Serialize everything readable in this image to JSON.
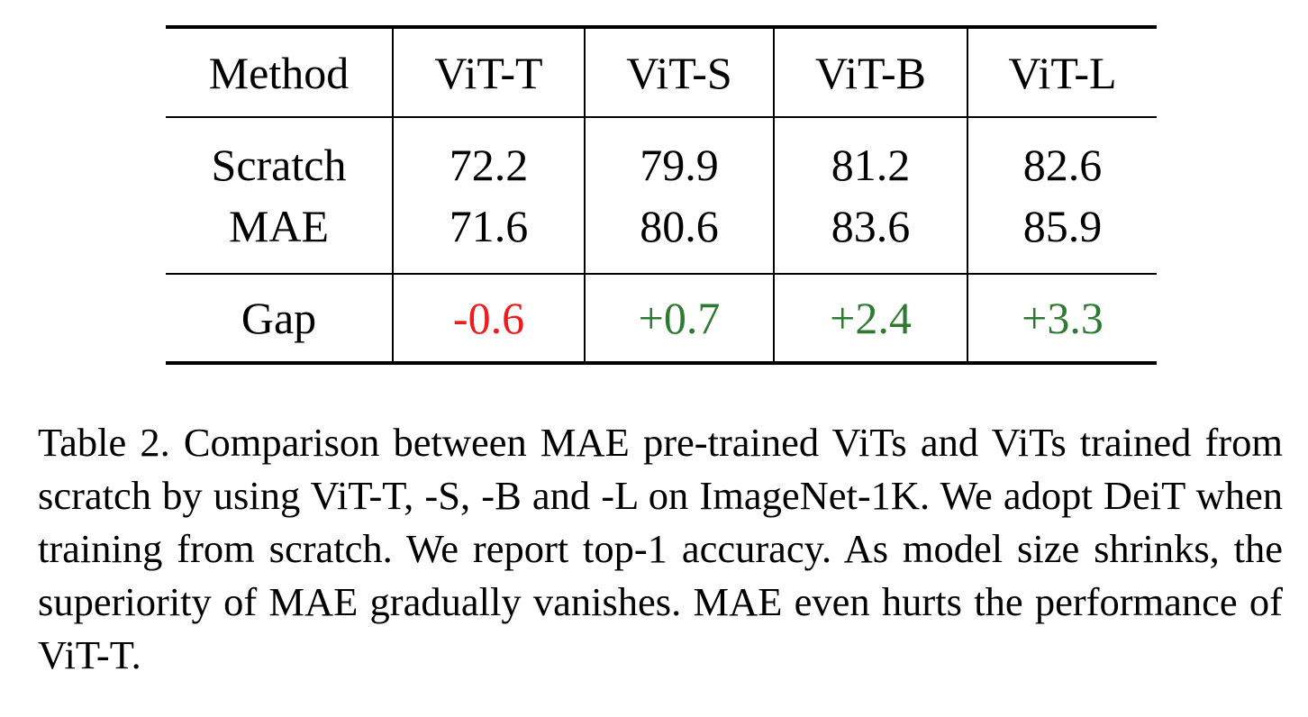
{
  "table": {
    "headers": [
      "Method",
      "ViT-T",
      "ViT-S",
      "ViT-B",
      "ViT-L"
    ],
    "rows": [
      {
        "method": "Scratch",
        "values": [
          "72.2",
          "79.9",
          "81.2",
          "82.6"
        ]
      },
      {
        "method": "MAE",
        "values": [
          "71.6",
          "80.6",
          "83.6",
          "85.9"
        ]
      }
    ],
    "gap": {
      "method": "Gap",
      "values": [
        "-0.6",
        "+0.7",
        "+2.4",
        "+3.3"
      ]
    },
    "colors": {
      "negative": "#ee1c1c",
      "positive": "#2e7a30"
    }
  },
  "caption": {
    "text": "Table 2. Comparison between MAE pre-trained ViTs and ViTs trained from scratch by using ViT-T, -S, -B and -L on ImageNet-1K. We adopt DeiT when training from scratch. We report top-1 accuracy. As model size shrinks, the superiority of MAE gradually vanishes. MAE even hurts the performance of ViT-T."
  }
}
